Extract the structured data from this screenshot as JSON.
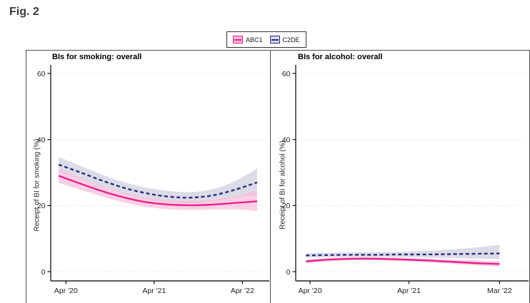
{
  "figure": {
    "label": "Fig. 2"
  },
  "legend": {
    "items": [
      {
        "label": "ABC1",
        "color": "#e6238d",
        "fill": "#f7b9d8",
        "line_style": "solid"
      },
      {
        "label": "C2DE",
        "color": "#2d2d7f",
        "fill": "#d8d8ea",
        "line_style": "dashed"
      }
    ]
  },
  "colors": {
    "grid": "#d9d9d9",
    "axis": "#222222",
    "panel_border": "#4f4f4f",
    "abc1_line": "#e6238d",
    "abc1_band": "#f9bcd9",
    "c2de_line": "#2d2d7f",
    "c2de_band": "#c6c6da"
  },
  "chart_data": [
    {
      "type": "line",
      "title": "BIs for smoking: overall",
      "ylabel": "Receipt of BI for smoking (%)",
      "ylim": [
        0,
        60
      ],
      "yticks": [
        0,
        20,
        40,
        60
      ],
      "grid": "dotted",
      "legend_position": "top-center",
      "xlim_months": [
        -1.3,
        26.3
      ],
      "xticks": [
        {
          "month": 0,
          "label": "Apr '20"
        },
        {
          "month": 12,
          "label": "Apr '21"
        },
        {
          "month": 24,
          "label": "Apr '22"
        }
      ],
      "series": [
        {
          "name": "ABC1",
          "line": "solid",
          "color": "#e6238d",
          "band_color": "#f9bcd9",
          "months": [
            -1,
            2,
            5,
            8,
            11,
            14,
            17,
            20,
            23,
            26
          ],
          "y": [
            29.0,
            26.6,
            24.3,
            22.4,
            21.0,
            20.3,
            20.1,
            20.3,
            20.8,
            21.3
          ],
          "lo": [
            26.8,
            24.8,
            22.7,
            20.9,
            19.6,
            18.9,
            18.7,
            18.8,
            18.9,
            18.4
          ],
          "hi": [
            31.2,
            28.4,
            25.9,
            23.9,
            22.4,
            21.7,
            21.5,
            21.8,
            22.7,
            24.6
          ]
        },
        {
          "name": "C2DE",
          "line": "dashed",
          "color": "#2d2d7f",
          "band_color": "#c6c6da",
          "months": [
            -1,
            2,
            5,
            8,
            11,
            14,
            17,
            20,
            23,
            26
          ],
          "y": [
            32.4,
            30.0,
            27.5,
            25.3,
            23.7,
            22.7,
            22.4,
            23.1,
            24.8,
            27.0
          ],
          "lo": [
            30.1,
            28.0,
            25.7,
            23.6,
            22.0,
            21.0,
            20.7,
            21.2,
            22.3,
            23.2
          ],
          "hi": [
            34.7,
            32.0,
            29.3,
            27.0,
            25.4,
            24.4,
            24.1,
            25.0,
            27.4,
            31.2
          ]
        }
      ]
    },
    {
      "type": "line",
      "title": "BIs for alcohol: overall",
      "ylabel": "Receipt of BI for alcohol (%)",
      "ylim": [
        0,
        60
      ],
      "yticks": [
        0,
        20,
        40,
        60
      ],
      "grid": "dotted",
      "legend_position": "top-center",
      "xlim_months": [
        -0.7,
        23.4
      ],
      "xticks": [
        {
          "month": 0,
          "label": "Apr '20"
        },
        {
          "month": 12,
          "label": "Apr '21"
        },
        {
          "month": 23,
          "label": "Mar '22"
        }
      ],
      "series": [
        {
          "name": "ABC1",
          "line": "solid",
          "color": "#e6238d",
          "band_color": "#f9bcd9",
          "months": [
            -0.5,
            2,
            5,
            8,
            11,
            14,
            17,
            20,
            23
          ],
          "y": [
            3.1,
            3.6,
            3.9,
            3.9,
            3.7,
            3.4,
            3.0,
            2.6,
            2.3
          ],
          "lo": [
            2.6,
            3.1,
            3.4,
            3.4,
            3.2,
            2.8,
            2.4,
            1.9,
            1.5
          ],
          "hi": [
            3.6,
            4.1,
            4.4,
            4.4,
            4.2,
            4.0,
            3.7,
            3.4,
            3.2
          ]
        },
        {
          "name": "C2DE",
          "line": "dashed",
          "color": "#2d2d7f",
          "band_color": "#c6c6da",
          "months": [
            -0.5,
            2,
            5,
            8,
            11,
            14,
            17,
            20,
            23
          ],
          "y": [
            4.9,
            5.0,
            5.1,
            5.1,
            5.2,
            5.2,
            5.3,
            5.4,
            5.5
          ],
          "lo": [
            4.2,
            4.4,
            4.5,
            4.5,
            4.4,
            4.3,
            4.1,
            4.0,
            3.8
          ],
          "hi": [
            5.6,
            5.7,
            5.8,
            5.9,
            6.0,
            6.3,
            6.7,
            7.3,
            8.1
          ]
        }
      ]
    }
  ]
}
